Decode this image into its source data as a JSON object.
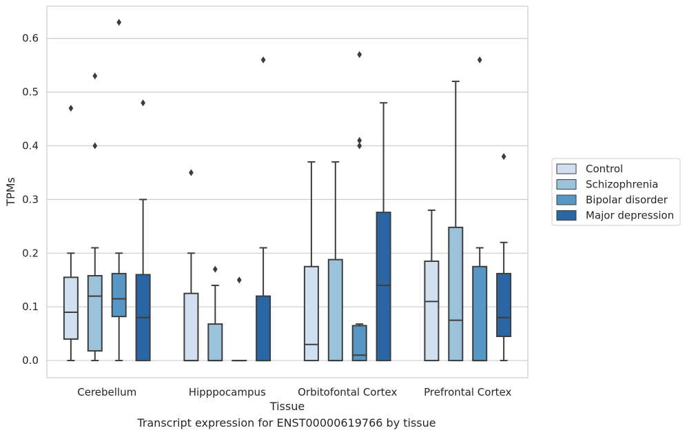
{
  "chart_data": {
    "type": "box",
    "xlabel": "Tissue",
    "ylabel": "TPMs",
    "caption": "Transcript expression for ENST00000619766 by tissue",
    "ylim": [
      -0.032,
      0.66
    ],
    "yticks": [
      "0.0",
      "0.1",
      "0.2",
      "0.3",
      "0.4",
      "0.5",
      "0.6"
    ],
    "grid": "horizontal",
    "legend_position": "right",
    "categories": [
      "Cerebellum",
      "Hipppocampus",
      "Orbitofontal Cortex",
      "Prefrontal Cortex"
    ],
    "series": [
      {
        "name": "Control",
        "color": "#d0e0f1",
        "boxes": [
          {
            "whislo": 0.0,
            "q1": 0.04,
            "med": 0.09,
            "q3": 0.155,
            "whishi": 0.2,
            "fliers": [
              0.47
            ]
          },
          {
            "whislo": 0.0,
            "q1": 0.0,
            "med": 0.0,
            "q3": 0.125,
            "whishi": 0.2,
            "fliers": [
              0.35
            ]
          },
          {
            "whislo": 0.0,
            "q1": 0.0,
            "med": 0.03,
            "q3": 0.175,
            "whishi": 0.37,
            "fliers": []
          },
          {
            "whislo": 0.0,
            "q1": 0.0,
            "med": 0.11,
            "q3": 0.185,
            "whishi": 0.28,
            "fliers": []
          }
        ]
      },
      {
        "name": "Schizophrenia",
        "color": "#9ac2db",
        "boxes": [
          {
            "whislo": 0.0,
            "q1": 0.018,
            "med": 0.12,
            "q3": 0.158,
            "whishi": 0.21,
            "fliers": [
              0.4,
              0.53
            ]
          },
          {
            "whislo": 0.0,
            "q1": 0.0,
            "med": 0.0,
            "q3": 0.068,
            "whishi": 0.14,
            "fliers": [
              0.17
            ]
          },
          {
            "whislo": 0.0,
            "q1": 0.0,
            "med": 0.0,
            "q3": 0.188,
            "whishi": 0.37,
            "fliers": []
          },
          {
            "whislo": 0.0,
            "q1": 0.0,
            "med": 0.075,
            "q3": 0.248,
            "whishi": 0.52,
            "fliers": []
          }
        ]
      },
      {
        "name": "Bipolar disorder",
        "color": "#5697c4",
        "boxes": [
          {
            "whislo": 0.0,
            "q1": 0.082,
            "med": 0.115,
            "q3": 0.162,
            "whishi": 0.2,
            "fliers": [
              0.63
            ]
          },
          {
            "whislo": 0.0,
            "q1": 0.0,
            "med": 0.0,
            "q3": 0.0,
            "whishi": 0.0,
            "fliers": [
              0.15
            ]
          },
          {
            "whislo": 0.0,
            "q1": 0.0,
            "med": 0.01,
            "q3": 0.065,
            "whishi": 0.068,
            "fliers": [
              0.4,
              0.41,
              0.57
            ]
          },
          {
            "whislo": 0.0,
            "q1": 0.0,
            "med": 0.0,
            "q3": 0.175,
            "whishi": 0.21,
            "fliers": [
              0.56
            ]
          }
        ]
      },
      {
        "name": "Major depression",
        "color": "#2a66a4",
        "boxes": [
          {
            "whislo": 0.0,
            "q1": 0.0,
            "med": 0.08,
            "q3": 0.16,
            "whishi": 0.3,
            "fliers": [
              0.48
            ]
          },
          {
            "whislo": 0.0,
            "q1": 0.0,
            "med": 0.0,
            "q3": 0.12,
            "whishi": 0.21,
            "fliers": [
              0.56
            ]
          },
          {
            "whislo": 0.0,
            "q1": 0.0,
            "med": 0.14,
            "q3": 0.276,
            "whishi": 0.48,
            "fliers": []
          },
          {
            "whislo": 0.0,
            "q1": 0.045,
            "med": 0.08,
            "q3": 0.162,
            "whishi": 0.22,
            "fliers": [
              0.38
            ]
          }
        ]
      }
    ]
  }
}
